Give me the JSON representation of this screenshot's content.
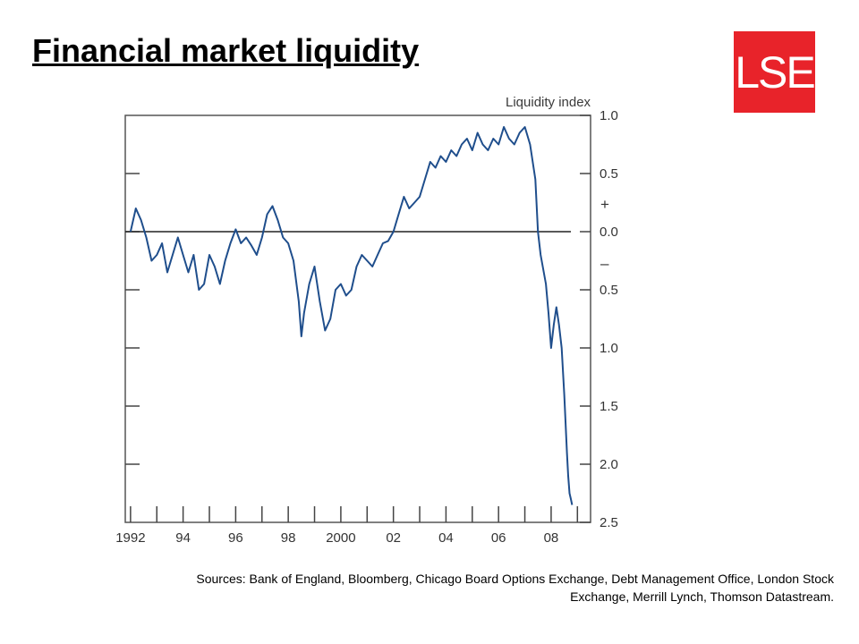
{
  "slide": {
    "title": "Financial market liquidity",
    "logo_text": "LSE",
    "logo_color": "#e8232a",
    "sources_line1": "Sources:  Bank of England, Bloomberg, Chicago Board Options Exchange, Debt Management Office, London Stock",
    "sources_line2": "Exchange, Merrill Lynch, Thomson Datastream."
  },
  "chart_data": {
    "type": "line",
    "ylabel": "Liquidity index",
    "xlim": [
      1991.8,
      2009.5
    ],
    "ylim": [
      -2.5,
      1.0
    ],
    "grid": false,
    "line_color": "#1f4e8c",
    "y_ticks": [
      1.0,
      0.5,
      0.0,
      -0.5,
      -1.0,
      -1.5,
      -2.0,
      -2.5
    ],
    "y_tick_labels": [
      "1.0",
      "0.5",
      "0.0",
      "0.5",
      "1.0",
      "1.5",
      "2.0",
      "2.5"
    ],
    "x_ticks": [
      1992,
      1994,
      1996,
      1998,
      2000,
      2002,
      2004,
      2006,
      2008
    ],
    "x_tick_labels": [
      "1992",
      "94",
      "96",
      "98",
      "2000",
      "02",
      "04",
      "06",
      "08"
    ],
    "plus_label": "+",
    "minus_label": "–",
    "series": [
      {
        "x": [
          1992.0,
          1992.2,
          1992.4,
          1992.6,
          1992.8,
          1993.0,
          1993.2,
          1993.4,
          1993.6,
          1993.8,
          1994.0,
          1994.2,
          1994.4,
          1994.6,
          1994.8,
          1995.0,
          1995.2,
          1995.4,
          1995.6,
          1995.8,
          1996.0,
          1996.2,
          1996.4,
          1996.6,
          1996.8,
          1997.0,
          1997.2,
          1997.4,
          1997.6,
          1997.8,
          1998.0,
          1998.2,
          1998.4,
          1998.5,
          1998.6,
          1998.8,
          1999.0,
          1999.2,
          1999.4,
          1999.6,
          1999.8,
          2000.0,
          2000.2,
          2000.4,
          2000.6,
          2000.8,
          2001.0,
          2001.2,
          2001.4,
          2001.6,
          2001.8,
          2002.0,
          2002.2,
          2002.4,
          2002.6,
          2002.8,
          2003.0,
          2003.2,
          2003.4,
          2003.6,
          2003.8,
          2004.0,
          2004.2,
          2004.4,
          2004.6,
          2004.8,
          2005.0,
          2005.2,
          2005.4,
          2005.6,
          2005.8,
          2006.0,
          2006.2,
          2006.4,
          2006.6,
          2006.8,
          2007.0,
          2007.2,
          2007.4,
          2007.5,
          2007.6,
          2007.8,
          2007.9,
          2008.0,
          2008.1,
          2008.2,
          2008.3,
          2008.4,
          2008.5,
          2008.6,
          2008.65,
          2008.7,
          2008.75,
          2008.8
        ],
        "values": [
          0.0,
          0.2,
          0.1,
          -0.05,
          -0.25,
          -0.2,
          -0.1,
          -0.35,
          -0.2,
          -0.05,
          -0.2,
          -0.35,
          -0.2,
          -0.5,
          -0.45,
          -0.2,
          -0.3,
          -0.45,
          -0.25,
          -0.1,
          0.02,
          -0.1,
          -0.05,
          -0.12,
          -0.2,
          -0.05,
          0.15,
          0.22,
          0.1,
          -0.05,
          -0.1,
          -0.25,
          -0.6,
          -0.9,
          -0.7,
          -0.45,
          -0.3,
          -0.6,
          -0.85,
          -0.75,
          -0.5,
          -0.45,
          -0.55,
          -0.5,
          -0.3,
          -0.2,
          -0.25,
          -0.3,
          -0.2,
          -0.1,
          -0.08,
          0.0,
          0.15,
          0.3,
          0.2,
          0.25,
          0.3,
          0.45,
          0.6,
          0.55,
          0.65,
          0.6,
          0.7,
          0.65,
          0.75,
          0.8,
          0.7,
          0.85,
          0.75,
          0.7,
          0.8,
          0.75,
          0.9,
          0.8,
          0.75,
          0.85,
          0.9,
          0.75,
          0.45,
          0.0,
          -0.2,
          -0.45,
          -0.7,
          -1.0,
          -0.8,
          -0.65,
          -0.8,
          -1.0,
          -1.4,
          -1.9,
          -2.1,
          -2.25,
          -2.3,
          -2.35
        ]
      }
    ]
  }
}
